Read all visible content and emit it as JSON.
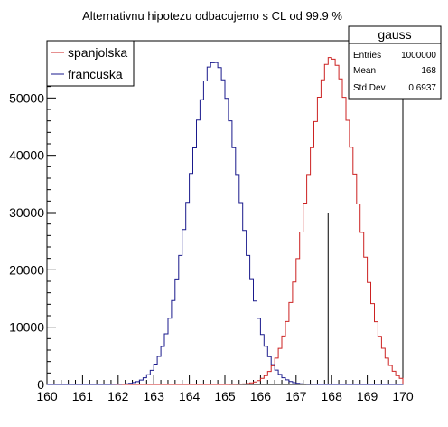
{
  "chart_data": {
    "type": "line",
    "title": "Alternativnu hipotezu odbacujemo s CL od 99.9 %",
    "xlabel": "",
    "ylabel": "",
    "xlim": [
      160,
      170
    ],
    "ylim": [
      0,
      60000
    ],
    "x_ticks": [
      "160",
      "161",
      "162",
      "163",
      "164",
      "165",
      "166",
      "167",
      "168",
      "169",
      "170"
    ],
    "y_ticks": [
      "0",
      "10000",
      "20000",
      "30000",
      "40000",
      "50000"
    ],
    "bins": 100,
    "legend": {
      "placement": "top-left"
    },
    "series": [
      {
        "name": "spanjolska",
        "color": "#cc2222",
        "mean": 168.0,
        "sigma": 0.69,
        "peak": 57000
      },
      {
        "name": "francuska",
        "color": "#1a1a8c",
        "mean": 164.7,
        "sigma": 0.7,
        "peak": 56500
      }
    ],
    "marker_line": {
      "x": 167.9,
      "y": 30000,
      "color": "#000000"
    }
  },
  "stats_box": {
    "title": "gauss",
    "rows": [
      {
        "label": "Entries",
        "value": "1000000"
      },
      {
        "label": "Mean",
        "value": "168"
      },
      {
        "label": "Std Dev",
        "value": "0.6937"
      }
    ]
  }
}
